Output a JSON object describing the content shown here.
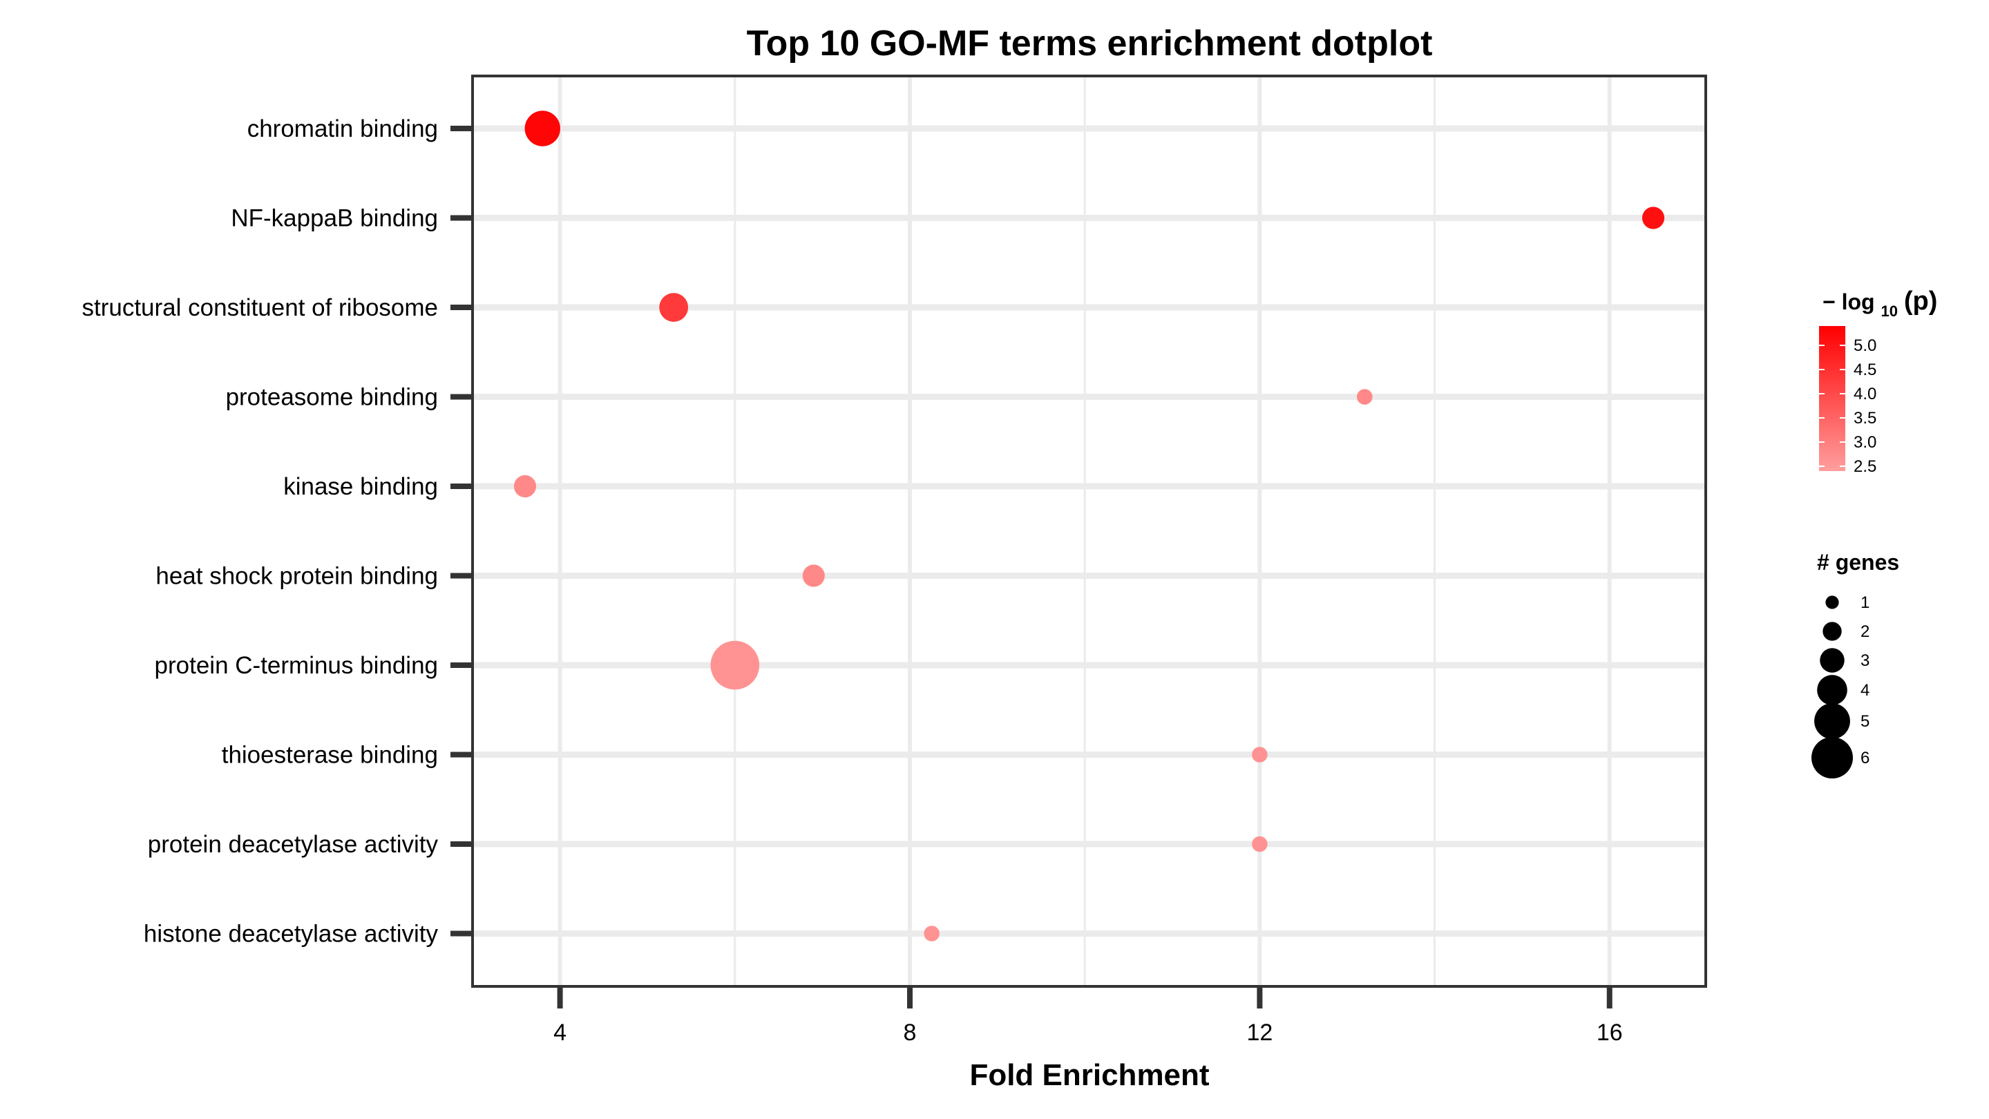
{
  "chart_data": {
    "type": "scatter",
    "title": "Top 10 GO-MF terms enrichment dotplot",
    "xlabel": "Fold Enrichment",
    "ylabel": "",
    "xlim": [
      3,
      17.1
    ],
    "xticks": [
      4,
      8,
      12,
      16
    ],
    "grid": true,
    "legend_position": "right",
    "categories": [
      "chromatin binding",
      "NF-kappaB binding",
      "structural constituent of ribosome",
      "proteasome binding",
      "kinase binding",
      "heat shock protein binding",
      "protein C-terminus binding",
      "thioesterase binding",
      "protein deacetylase activity",
      "histone deacetylase activity"
    ],
    "points": [
      {
        "term": "chromatin binding",
        "fold_enrichment": 3.8,
        "neg_log10_p": 5.3,
        "genes": 4
      },
      {
        "term": "NF-kappaB binding",
        "fold_enrichment": 16.5,
        "neg_log10_p": 5.1,
        "genes": 2
      },
      {
        "term": "structural constituent of ribosome",
        "fold_enrichment": 5.3,
        "neg_log10_p": 4.3,
        "genes": 3
      },
      {
        "term": "proteasome binding",
        "fold_enrichment": 13.2,
        "neg_log10_p": 2.8,
        "genes": 1
      },
      {
        "term": "kinase binding",
        "fold_enrichment": 3.6,
        "neg_log10_p": 2.8,
        "genes": 2
      },
      {
        "term": "heat shock protein binding",
        "fold_enrichment": 6.9,
        "neg_log10_p": 2.8,
        "genes": 2
      },
      {
        "term": "protein C-terminus binding",
        "fold_enrichment": 6.0,
        "neg_log10_p": 2.6,
        "genes": 6
      },
      {
        "term": "thioesterase binding",
        "fold_enrichment": 12.0,
        "neg_log10_p": 2.6,
        "genes": 1
      },
      {
        "term": "protein deacetylase activity",
        "fold_enrichment": 12.0,
        "neg_log10_p": 2.6,
        "genes": 1
      },
      {
        "term": "histone deacetylase activity",
        "fold_enrichment": 8.25,
        "neg_log10_p": 2.6,
        "genes": 1
      }
    ],
    "color_legend": {
      "title_prefix": "− log",
      "title_sub": "10",
      "title_suffix": "(p)",
      "ticks": [
        5.0,
        4.5,
        4.0,
        3.5,
        3.0,
        2.5
      ],
      "tick_labels": [
        "5.0",
        "4.5",
        "4.0",
        "3.5",
        "3.0",
        "2.5"
      ],
      "range": [
        2.4,
        5.4
      ],
      "color_low": "#ff9e9e",
      "color_high": "#ff0000"
    },
    "size_legend": {
      "title": "# genes",
      "values": [
        1,
        2,
        3,
        4,
        5,
        6
      ],
      "labels": [
        "1",
        "2",
        "3",
        "4",
        "5",
        "6"
      ]
    }
  }
}
